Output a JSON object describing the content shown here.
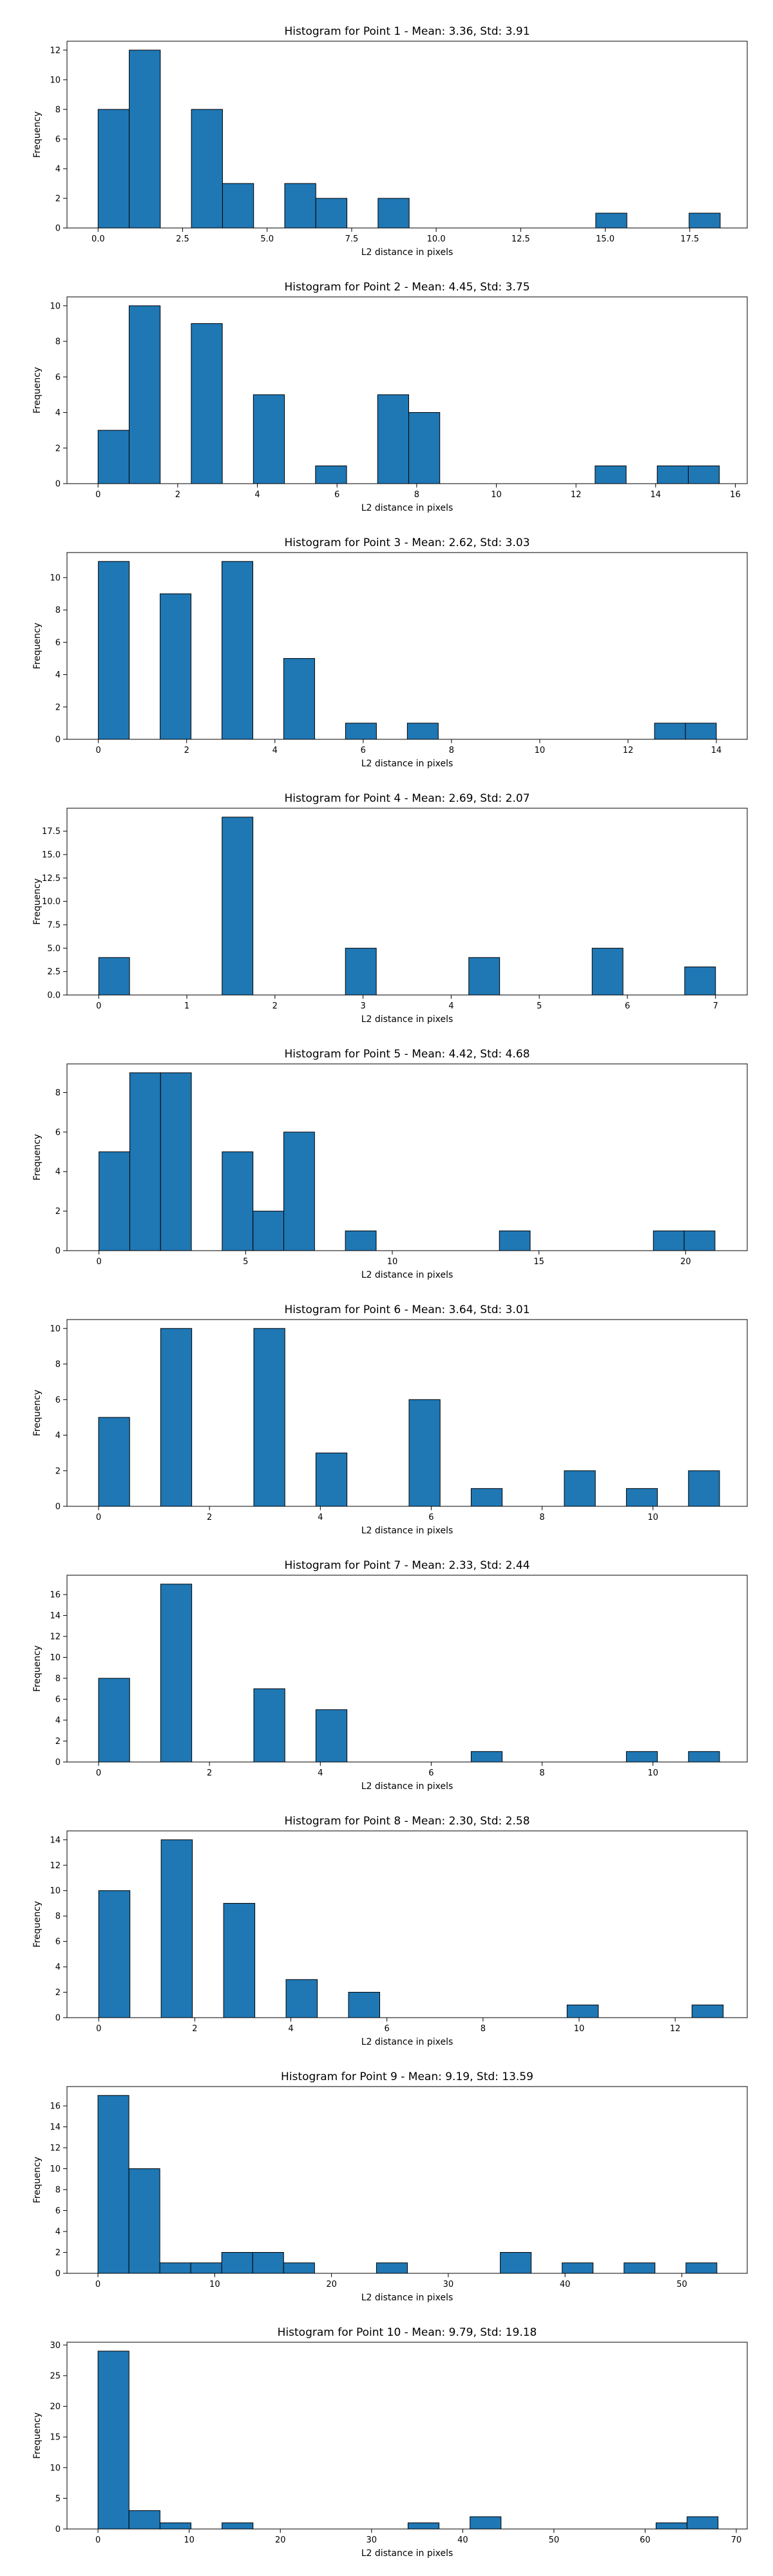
{
  "chart_data": [
    {
      "type": "bar",
      "title": "Histogram for Point 1 - Mean: 3.36, Std: 3.91",
      "xlabel": "L2 distance in pixels",
      "ylabel": "Frequency",
      "xlim": [
        -0.92,
        19.2
      ],
      "ylim": [
        0,
        12.6
      ],
      "xticks": [
        0.0,
        2.5,
        5.0,
        7.5,
        10.0,
        12.5,
        15.0,
        17.5
      ],
      "xtick_labels": [
        "0.0",
        "2.5",
        "5.0",
        "7.5",
        "10.0",
        "12.5",
        "15.0",
        "17.5"
      ],
      "yticks": [
        0,
        2,
        4,
        6,
        8,
        10,
        12
      ],
      "ytick_labels": [
        "0",
        "2",
        "4",
        "6",
        "8",
        "10",
        "12"
      ],
      "bins": [
        {
          "x0": 0.0,
          "x1": 0.92,
          "count": 8
        },
        {
          "x0": 0.92,
          "x1": 1.84,
          "count": 12
        },
        {
          "x0": 2.76,
          "x1": 3.68,
          "count": 8
        },
        {
          "x0": 3.68,
          "x1": 4.6,
          "count": 3
        },
        {
          "x0": 5.52,
          "x1": 6.44,
          "count": 3
        },
        {
          "x0": 6.44,
          "x1": 7.36,
          "count": 2
        },
        {
          "x0": 8.28,
          "x1": 9.2,
          "count": 2
        },
        {
          "x0": 14.72,
          "x1": 15.64,
          "count": 1
        },
        {
          "x0": 17.48,
          "x1": 18.4,
          "count": 1
        }
      ],
      "bar_color": "#1f77b4",
      "grid": false
    },
    {
      "type": "bar",
      "title": "Histogram for Point 2 - Mean: 4.45, Std: 3.75",
      "xlabel": "L2 distance in pixels",
      "ylabel": "Frequency",
      "xlim": [
        -0.78,
        16.3
      ],
      "ylim": [
        0,
        10.5
      ],
      "xticks": [
        0,
        2,
        4,
        6,
        8,
        10,
        12,
        14,
        16
      ],
      "xtick_labels": [
        "0",
        "2",
        "4",
        "6",
        "8",
        "10",
        "12",
        "14",
        "16"
      ],
      "yticks": [
        0,
        2,
        4,
        6,
        8,
        10
      ],
      "ytick_labels": [
        "0",
        "2",
        "4",
        "6",
        "8",
        "10"
      ],
      "bins": [
        {
          "x0": 0.0,
          "x1": 0.78,
          "count": 3
        },
        {
          "x0": 0.78,
          "x1": 1.56,
          "count": 10
        },
        {
          "x0": 2.34,
          "x1": 3.12,
          "count": 9
        },
        {
          "x0": 3.9,
          "x1": 4.68,
          "count": 5
        },
        {
          "x0": 5.46,
          "x1": 6.24,
          "count": 1
        },
        {
          "x0": 7.02,
          "x1": 7.8,
          "count": 5
        },
        {
          "x0": 7.8,
          "x1": 8.58,
          "count": 4
        },
        {
          "x0": 12.48,
          "x1": 13.26,
          "count": 1
        },
        {
          "x0": 14.04,
          "x1": 14.82,
          "count": 1
        },
        {
          "x0": 14.82,
          "x1": 15.6,
          "count": 1
        }
      ],
      "bar_color": "#1f77b4",
      "grid": false
    },
    {
      "type": "bar",
      "title": "Histogram for Point 3 - Mean: 2.62, Std: 3.03",
      "xlabel": "L2 distance in pixels",
      "ylabel": "Frequency",
      "xlim": [
        -0.71,
        14.7
      ],
      "ylim": [
        0,
        11.55
      ],
      "xticks": [
        0,
        2,
        4,
        6,
        8,
        10,
        12,
        14
      ],
      "xtick_labels": [
        "0",
        "2",
        "4",
        "6",
        "8",
        "10",
        "12",
        "14"
      ],
      "yticks": [
        0,
        2,
        4,
        6,
        8,
        10
      ],
      "ytick_labels": [
        "0",
        "2",
        "4",
        "6",
        "8",
        "10"
      ],
      "bins": [
        {
          "x0": 0.0,
          "x1": 0.7,
          "count": 11
        },
        {
          "x0": 1.4,
          "x1": 2.1,
          "count": 9
        },
        {
          "x0": 2.8,
          "x1": 3.5,
          "count": 11
        },
        {
          "x0": 4.2,
          "x1": 4.9,
          "count": 5
        },
        {
          "x0": 5.6,
          "x1": 6.3,
          "count": 1
        },
        {
          "x0": 7.0,
          "x1": 7.7,
          "count": 1
        },
        {
          "x0": 12.6,
          "x1": 13.3,
          "count": 1
        },
        {
          "x0": 13.3,
          "x1": 14.0,
          "count": 1
        }
      ],
      "bar_color": "#1f77b4",
      "grid": false
    },
    {
      "type": "bar",
      "title": "Histogram for Point 4 - Mean: 2.69, Std: 2.07",
      "xlabel": "L2 distance in pixels",
      "ylabel": "Frequency",
      "xlim": [
        -0.36,
        7.36
      ],
      "ylim": [
        0,
        19.95
      ],
      "xticks": [
        0,
        1,
        2,
        3,
        4,
        5,
        6,
        7
      ],
      "xtick_labels": [
        "0",
        "1",
        "2",
        "3",
        "4",
        "5",
        "6",
        "7"
      ],
      "yticks": [
        0,
        2.5,
        5,
        7.5,
        10,
        12.5,
        15,
        17.5
      ],
      "ytick_labels": [
        "0.0",
        "2.5",
        "5.0",
        "7.5",
        "10.0",
        "12.5",
        "15.0",
        "17.5"
      ],
      "bins": [
        {
          "x0": 0.0,
          "x1": 0.35,
          "count": 4
        },
        {
          "x0": 1.4,
          "x1": 1.75,
          "count": 19
        },
        {
          "x0": 2.8,
          "x1": 3.15,
          "count": 5
        },
        {
          "x0": 4.2,
          "x1": 4.55,
          "count": 4
        },
        {
          "x0": 5.6,
          "x1": 5.95,
          "count": 5
        },
        {
          "x0": 6.65,
          "x1": 7.0,
          "count": 3
        }
      ],
      "bar_color": "#1f77b4",
      "grid": false
    },
    {
      "type": "bar",
      "title": "Histogram for Point 5 - Mean: 4.42, Std: 4.68",
      "xlabel": "L2 distance in pixels",
      "ylabel": "Frequency",
      "xlim": [
        -1.09,
        22.1
      ],
      "ylim": [
        0,
        9.45
      ],
      "xticks": [
        0,
        5,
        10,
        15,
        20
      ],
      "xtick_labels": [
        "0",
        "5",
        "10",
        "15",
        "20"
      ],
      "yticks": [
        0,
        2,
        4,
        6,
        8
      ],
      "ytick_labels": [
        "0",
        "2",
        "4",
        "6",
        "8"
      ],
      "bins": [
        {
          "x0": 0.0,
          "x1": 1.05,
          "count": 5
        },
        {
          "x0": 1.05,
          "x1": 2.1,
          "count": 9
        },
        {
          "x0": 2.1,
          "x1": 3.15,
          "count": 9
        },
        {
          "x0": 4.2,
          "x1": 5.25,
          "count": 5
        },
        {
          "x0": 5.25,
          "x1": 6.3,
          "count": 2
        },
        {
          "x0": 6.3,
          "x1": 7.35,
          "count": 6
        },
        {
          "x0": 8.4,
          "x1": 9.45,
          "count": 1
        },
        {
          "x0": 13.65,
          "x1": 14.7,
          "count": 1
        },
        {
          "x0": 18.9,
          "x1": 19.95,
          "count": 1
        },
        {
          "x0": 19.95,
          "x1": 21.0,
          "count": 1
        }
      ],
      "bar_color": "#1f77b4",
      "grid": false
    },
    {
      "type": "bar",
      "title": "Histogram for Point 6 - Mean: 3.64, Std: 3.01",
      "xlabel": "L2 distance in pixels",
      "ylabel": "Frequency",
      "xlim": [
        -0.57,
        11.7
      ],
      "ylim": [
        0,
        10.5
      ],
      "xticks": [
        0,
        2,
        4,
        6,
        8,
        10
      ],
      "xtick_labels": [
        "0",
        "2",
        "4",
        "6",
        "8",
        "10"
      ],
      "yticks": [
        0,
        2,
        4,
        6,
        8,
        10
      ],
      "ytick_labels": [
        "0",
        "2",
        "4",
        "6",
        "8",
        "10"
      ],
      "bins": [
        {
          "x0": 0.0,
          "x1": 0.56,
          "count": 5
        },
        {
          "x0": 1.12,
          "x1": 1.68,
          "count": 10
        },
        {
          "x0": 2.8,
          "x1": 3.36,
          "count": 10
        },
        {
          "x0": 3.92,
          "x1": 4.48,
          "count": 3
        },
        {
          "x0": 5.6,
          "x1": 6.16,
          "count": 6
        },
        {
          "x0": 6.72,
          "x1": 7.28,
          "count": 1
        },
        {
          "x0": 8.4,
          "x1": 8.96,
          "count": 2
        },
        {
          "x0": 9.52,
          "x1": 10.08,
          "count": 1
        },
        {
          "x0": 10.64,
          "x1": 11.2,
          "count": 2
        }
      ],
      "bar_color": "#1f77b4",
      "grid": false
    },
    {
      "type": "bar",
      "title": "Histogram for Point 7 - Mean: 2.33, Std: 2.44",
      "xlabel": "L2 distance in pixels",
      "ylabel": "Frequency",
      "xlim": [
        -0.57,
        11.7
      ],
      "ylim": [
        0,
        17.85
      ],
      "xticks": [
        0,
        2,
        4,
        6,
        8,
        10
      ],
      "xtick_labels": [
        "0",
        "2",
        "4",
        "6",
        "8",
        "10"
      ],
      "yticks": [
        0,
        2,
        4,
        6,
        8,
        10,
        12,
        14,
        16
      ],
      "ytick_labels": [
        "0",
        "2",
        "4",
        "6",
        "8",
        "10",
        "12",
        "14",
        "16"
      ],
      "bins": [
        {
          "x0": 0.0,
          "x1": 0.56,
          "count": 8
        },
        {
          "x0": 1.12,
          "x1": 1.68,
          "count": 17
        },
        {
          "x0": 2.8,
          "x1": 3.36,
          "count": 7
        },
        {
          "x0": 3.92,
          "x1": 4.48,
          "count": 5
        },
        {
          "x0": 6.72,
          "x1": 7.28,
          "count": 1
        },
        {
          "x0": 9.52,
          "x1": 10.08,
          "count": 1
        },
        {
          "x0": 10.64,
          "x1": 11.2,
          "count": 1
        }
      ],
      "bar_color": "#1f77b4",
      "grid": false
    },
    {
      "type": "bar",
      "title": "Histogram for Point 8 - Mean: 2.30, Std: 2.58",
      "xlabel": "L2 distance in pixels",
      "ylabel": "Frequency",
      "xlim": [
        -0.66,
        13.5
      ],
      "ylim": [
        0,
        14.7
      ],
      "xticks": [
        0,
        2,
        4,
        6,
        8,
        10,
        12
      ],
      "xtick_labels": [
        "0",
        "2",
        "4",
        "6",
        "8",
        "10",
        "12"
      ],
      "yticks": [
        0,
        2,
        4,
        6,
        8,
        10,
        12,
        14
      ],
      "ytick_labels": [
        "0",
        "2",
        "4",
        "6",
        "8",
        "10",
        "12",
        "14"
      ],
      "bins": [
        {
          "x0": 0.0,
          "x1": 0.65,
          "count": 10
        },
        {
          "x0": 1.3,
          "x1": 1.95,
          "count": 14
        },
        {
          "x0": 2.6,
          "x1": 3.25,
          "count": 9
        },
        {
          "x0": 3.9,
          "x1": 4.55,
          "count": 3
        },
        {
          "x0": 5.2,
          "x1": 5.85,
          "count": 2
        },
        {
          "x0": 9.75,
          "x1": 10.4,
          "count": 1
        },
        {
          "x0": 12.35,
          "x1": 13.0,
          "count": 1
        }
      ],
      "bar_color": "#1f77b4",
      "grid": false
    },
    {
      "type": "bar",
      "title": "Histogram for Point 9 - Mean: 9.19, Std: 13.59",
      "xlabel": "L2 distance in pixels",
      "ylabel": "Frequency",
      "xlim": [
        -2.65,
        55.6
      ],
      "ylim": [
        0,
        17.85
      ],
      "xticks": [
        0,
        10,
        20,
        30,
        40,
        50
      ],
      "xtick_labels": [
        "0",
        "10",
        "20",
        "30",
        "40",
        "50"
      ],
      "yticks": [
        0,
        2,
        4,
        6,
        8,
        10,
        12,
        14,
        16
      ],
      "ytick_labels": [
        "0",
        "2",
        "4",
        "6",
        "8",
        "10",
        "12",
        "14",
        "16"
      ],
      "bins": [
        {
          "x0": 0.0,
          "x1": 2.65,
          "count": 17
        },
        {
          "x0": 2.65,
          "x1": 5.3,
          "count": 10
        },
        {
          "x0": 5.3,
          "x1": 7.95,
          "count": 1
        },
        {
          "x0": 7.95,
          "x1": 10.6,
          "count": 1
        },
        {
          "x0": 10.6,
          "x1": 13.25,
          "count": 2
        },
        {
          "x0": 13.25,
          "x1": 15.9,
          "count": 2
        },
        {
          "x0": 15.9,
          "x1": 18.55,
          "count": 1
        },
        {
          "x0": 23.85,
          "x1": 26.5,
          "count": 1
        },
        {
          "x0": 34.45,
          "x1": 37.1,
          "count": 2
        },
        {
          "x0": 39.75,
          "x1": 42.4,
          "count": 1
        },
        {
          "x0": 45.05,
          "x1": 47.7,
          "count": 1
        },
        {
          "x0": 50.35,
          "x1": 53.0,
          "count": 1
        }
      ],
      "bar_color": "#1f77b4",
      "grid": false
    },
    {
      "type": "bar",
      "title": "Histogram for Point 10 - Mean: 9.79, Std: 19.18",
      "xlabel": "L2 distance in pixels",
      "ylabel": "Frequency",
      "xlim": [
        -3.4,
        71.2
      ],
      "ylim": [
        0,
        30.45
      ],
      "xticks": [
        0,
        10,
        20,
        30,
        40,
        50,
        60,
        70
      ],
      "xtick_labels": [
        "0",
        "10",
        "20",
        "30",
        "40",
        "50",
        "60",
        "70"
      ],
      "yticks": [
        0,
        5,
        10,
        15,
        20,
        25,
        30
      ],
      "ytick_labels": [
        "0",
        "5",
        "10",
        "15",
        "20",
        "25",
        "30"
      ],
      "bins": [
        {
          "x0": 0.0,
          "x1": 3.4,
          "count": 29
        },
        {
          "x0": 3.4,
          "x1": 6.8,
          "count": 3
        },
        {
          "x0": 6.8,
          "x1": 10.2,
          "count": 1
        },
        {
          "x0": 13.6,
          "x1": 17.0,
          "count": 1
        },
        {
          "x0": 34.0,
          "x1": 37.4,
          "count": 1
        },
        {
          "x0": 40.8,
          "x1": 44.2,
          "count": 2
        },
        {
          "x0": 61.2,
          "x1": 64.6,
          "count": 1
        },
        {
          "x0": 64.6,
          "x1": 68.0,
          "count": 2
        }
      ],
      "bar_color": "#1f77b4",
      "grid": false
    }
  ]
}
